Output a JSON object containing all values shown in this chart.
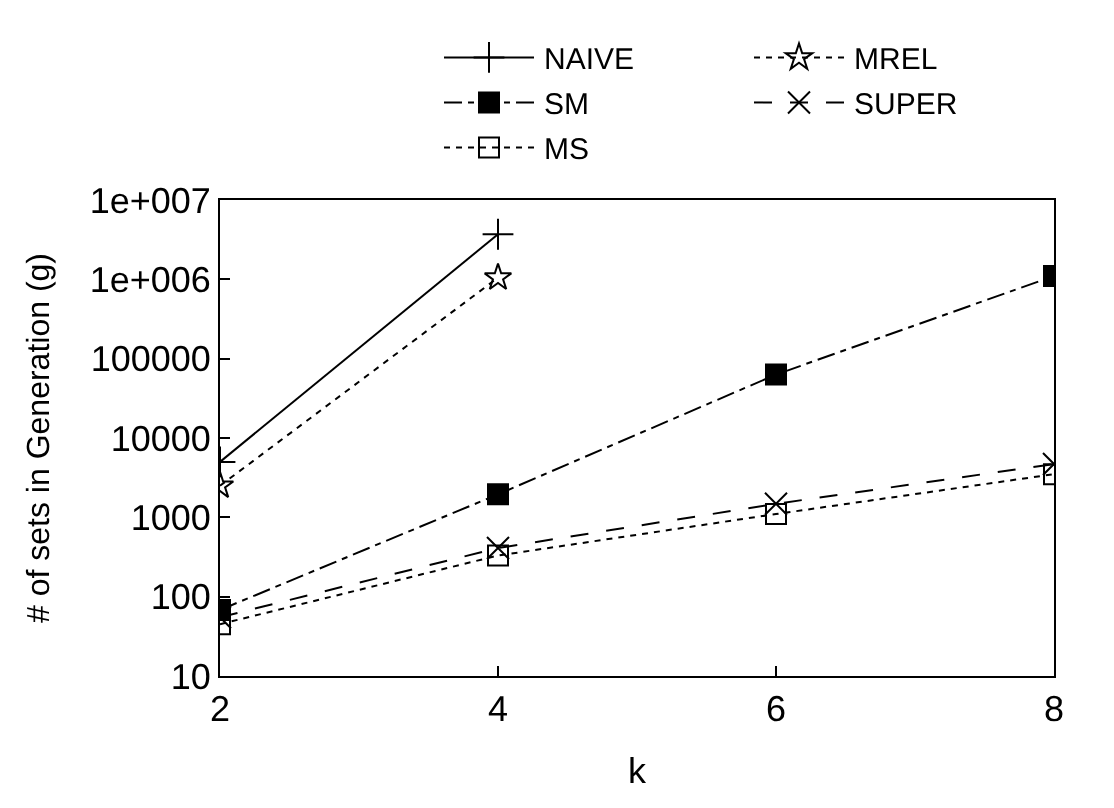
{
  "chart_data": {
    "type": "line",
    "xlabel": "k",
    "ylabel": "# of sets in Generation (g)",
    "log": true,
    "legend": "top",
    "x": [
      2,
      4,
      6,
      8
    ],
    "xlim": [
      2,
      8
    ],
    "xticks": [
      2,
      4,
      6,
      8
    ],
    "ylim": [
      10,
      10000000
    ],
    "yticks": [
      10,
      100,
      1000,
      10000,
      100000,
      {
        "value": 1000000,
        "label": "1e+006"
      },
      {
        "value": 10000000,
        "label": "1e+007"
      }
    ],
    "series": [
      {
        "name": "NAIVE",
        "color": "#000000",
        "marker": "cross",
        "line_style": "solid",
        "values": [
          5000,
          3700000,
          null,
          null
        ]
      },
      {
        "name": "MREL",
        "color": "#000000",
        "marker": "star",
        "line_style": "dotted",
        "values": [
          2500,
          1050000,
          null,
          null
        ]
      },
      {
        "name": "SM",
        "color": "#000000",
        "marker": "square",
        "line_style": "dashdot",
        "values": [
          68,
          1950,
          63000,
          1100000
        ]
      },
      {
        "name": "SUPER",
        "color": "#000000",
        "marker": "x",
        "line_style": "dashed",
        "values": [
          55,
          410,
          1480,
          4700
        ]
      },
      {
        "name": "MS",
        "color": "#000000",
        "marker": "square-open",
        "line_style": "dotted",
        "values": [
          45,
          330,
          1100,
          3500
        ]
      }
    ]
  }
}
